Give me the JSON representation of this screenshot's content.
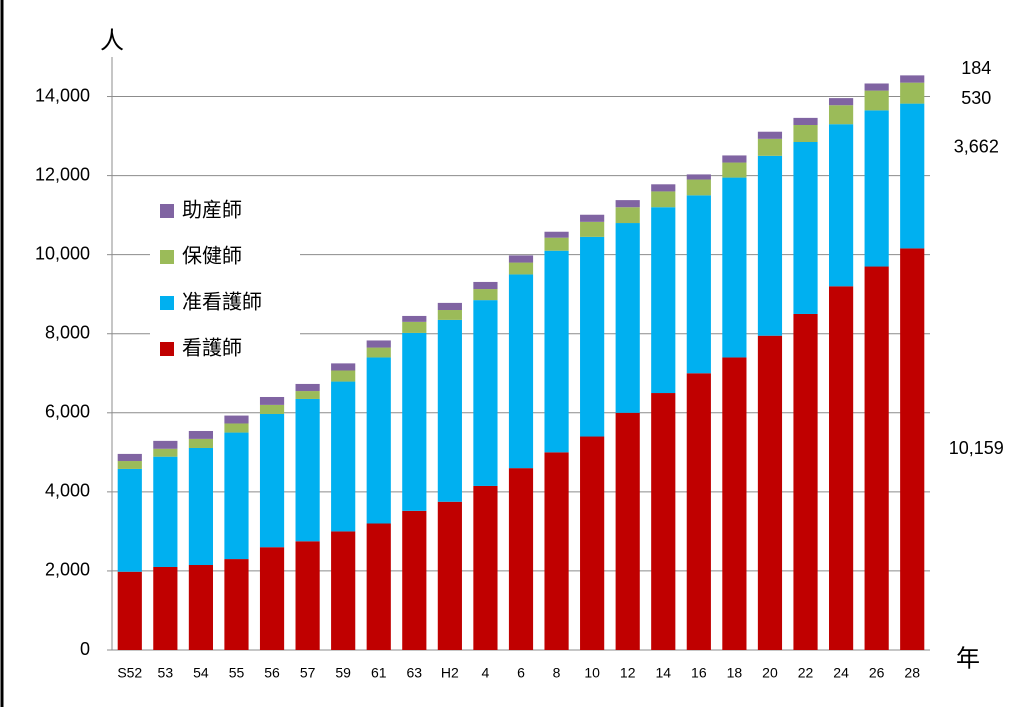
{
  "chart_data": {
    "type": "stacked_bar",
    "y_label": "人",
    "x_label": "年",
    "categories": [
      "S52",
      "53",
      "54",
      "55",
      "56",
      "57",
      "59",
      "61",
      "63",
      "H2",
      "4",
      "6",
      "8",
      "10",
      "12",
      "14",
      "16",
      "18",
      "20",
      "22",
      "24",
      "26",
      "28"
    ],
    "series": [
      {
        "name": "看護師",
        "color": "#c00000",
        "values": [
          1980,
          2100,
          2150,
          2300,
          2600,
          2750,
          3000,
          3200,
          3520,
          3750,
          4150,
          4600,
          5000,
          5400,
          6000,
          6500,
          7000,
          7400,
          7950,
          8500,
          9200,
          9700,
          10159
        ],
        "value_labels": [
          null,
          null,
          null,
          null,
          null,
          null,
          null,
          null,
          null,
          null,
          null,
          null,
          null,
          null,
          null,
          null,
          null,
          null,
          null,
          null,
          null,
          null,
          "10,159"
        ]
      },
      {
        "name": "准看護師",
        "color": "#00b0f0",
        "values": [
          2600,
          2790,
          2960,
          3200,
          3370,
          3600,
          3790,
          4200,
          4500,
          4600,
          4700,
          4900,
          5100,
          5050,
          4800,
          4700,
          4500,
          4550,
          4550,
          4350,
          4100,
          3950,
          3662
        ],
        "value_labels": [
          null,
          null,
          null,
          null,
          null,
          null,
          null,
          null,
          null,
          null,
          null,
          null,
          null,
          null,
          null,
          null,
          null,
          null,
          null,
          null,
          null,
          null,
          "3,662"
        ]
      },
      {
        "name": "保健師",
        "color": "#9bbb59",
        "values": [
          200,
          200,
          230,
          230,
          230,
          200,
          280,
          250,
          280,
          250,
          280,
          300,
          330,
          380,
          400,
          400,
          400,
          380,
          430,
          430,
          480,
          500,
          530
        ],
        "value_labels": [
          null,
          null,
          null,
          null,
          null,
          null,
          null,
          null,
          null,
          null,
          null,
          null,
          null,
          null,
          null,
          null,
          null,
          null,
          null,
          null,
          null,
          null,
          "530"
        ]
      },
      {
        "name": "助産師",
        "color": "#8064a2",
        "values": [
          180,
          200,
          200,
          200,
          200,
          180,
          180,
          180,
          150,
          180,
          180,
          180,
          150,
          180,
          180,
          180,
          130,
          180,
          180,
          180,
          180,
          180,
          184
        ],
        "value_labels": [
          null,
          null,
          null,
          null,
          null,
          null,
          null,
          null,
          null,
          null,
          null,
          null,
          null,
          null,
          null,
          null,
          null,
          null,
          null,
          null,
          null,
          null,
          "184"
        ]
      }
    ],
    "ylim": [
      0,
      15000
    ],
    "yticks": [
      0,
      {
        "value": 2000,
        "label": "2,000"
      },
      {
        "value": 4000,
        "label": "4,000"
      },
      {
        "value": 6000,
        "label": "6,000"
      },
      {
        "value": 8000,
        "label": "8,000"
      },
      {
        "value": 10000,
        "label": "10,000"
      },
      {
        "value": 12000,
        "label": "12,000"
      },
      {
        "value": 14000,
        "label": "14,000"
      }
    ],
    "grid": true,
    "legend": "upper-left"
  }
}
